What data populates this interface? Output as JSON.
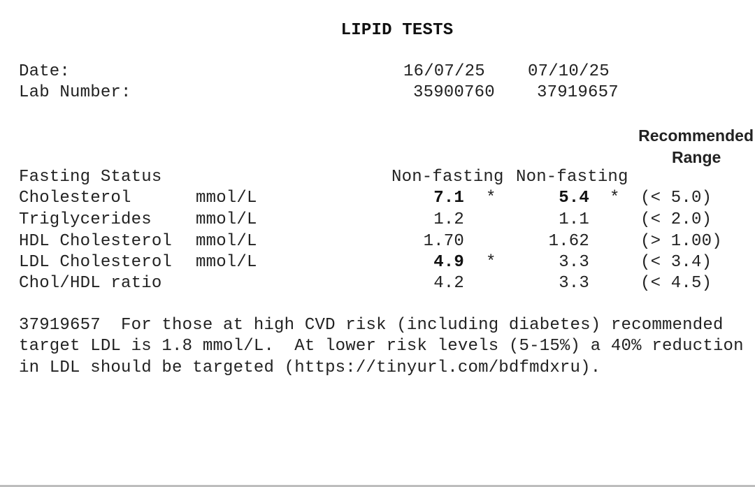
{
  "title": "LIPID TESTS",
  "header": {
    "date_label": "Date:",
    "lab_label": "Lab Number:",
    "dates": [
      "16/07/25",
      "07/10/25"
    ],
    "lab_numbers": [
      "35900760",
      "37919657"
    ]
  },
  "table": {
    "range_header_line1": "Recommended",
    "range_header_line2": "Range",
    "fasting_label": "Fasting Status",
    "fasting_values": [
      "Non-fasting",
      "Non-fasting"
    ],
    "rows": [
      {
        "name": "Cholesterol",
        "unit": "mmol/L",
        "v1": "7.1",
        "f1": "*",
        "v2": "5.4",
        "f2": "*",
        "range": "(< 5.0)"
      },
      {
        "name": "Triglycerides",
        "unit": "mmol/L",
        "v1": "1.2",
        "f1": "",
        "v2": "1.1",
        "f2": "",
        "range": "(< 2.0)"
      },
      {
        "name": "HDL Cholesterol",
        "unit": "mmol/L",
        "v1": "1.70",
        "f1": "",
        "v2": "1.62",
        "f2": "",
        "range": "(> 1.00)"
      },
      {
        "name": "LDL Cholesterol",
        "unit": "mmol/L",
        "v1": "4.9",
        "f1": "*",
        "v2": "3.3",
        "f2": "",
        "range": "(< 3.4)"
      },
      {
        "name": "Chol/HDL ratio",
        "unit": "",
        "v1": "4.2",
        "f1": "",
        "v2": "3.3",
        "f2": "",
        "range": "(< 4.5)"
      }
    ]
  },
  "note": {
    "lines": [
      "37919657  For those at high CVD risk (including diabetes) recommended",
      "target LDL is 1.8 mmol/L.  At lower risk levels (5-15%) a 40% reduction",
      "in LDL should be targeted (https://tinyurl.com/bdfmdxru)."
    ]
  }
}
